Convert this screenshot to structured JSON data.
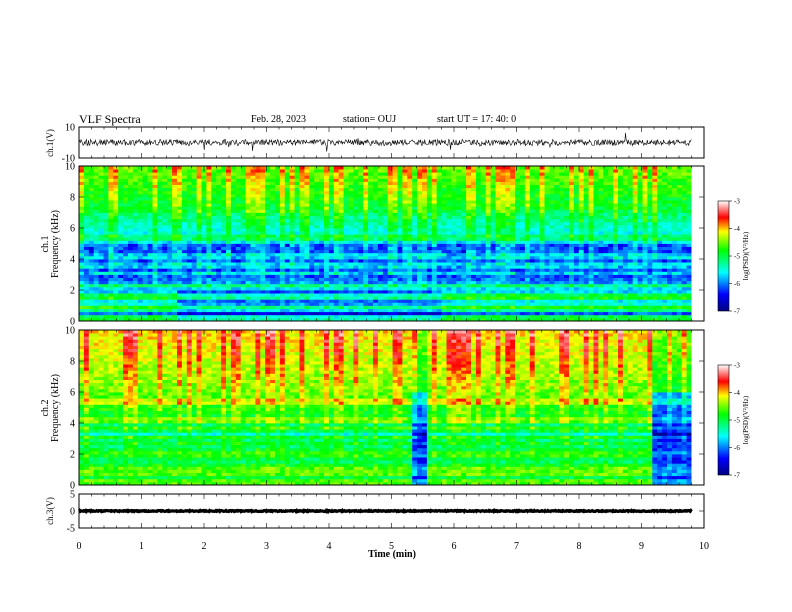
{
  "header": {
    "title": "VLF Spectra",
    "date": "Feb. 28, 2023",
    "station": "station= OUJ",
    "start": "start  UT =   17: 40: 0"
  },
  "colors": {
    "spectrogram_low": "#00007f",
    "spectrogram_mid": "#00ff00",
    "spectrogram_high": "#ff0000",
    "trace": "#000000",
    "background": "#ffffff"
  },
  "chart_data": [
    {
      "type": "line",
      "panel": "ch1-waveform",
      "ylabel": "ch.1(V)",
      "ylim": [
        -10,
        10
      ],
      "ytick_labels": [
        "10",
        "-10"
      ],
      "xlim": [
        0,
        10
      ],
      "series": [
        {
          "description_free": true,
          "baseline": 0,
          "noise_amplitude": 2
        }
      ]
    },
    {
      "type": "heatmap",
      "panel": "ch1-spectrogram",
      "ylabel": "ch.1 Frequency (kHz)",
      "ylim": [
        0,
        10
      ],
      "ytick_labels": [
        "0",
        "2",
        "4",
        "6",
        "8",
        "10"
      ],
      "xlim": [
        0,
        10
      ],
      "colorbar": {
        "label": "log(PSD)(V²/Hz)",
        "range": [
          -7,
          -3
        ],
        "tick_labels": [
          "-3",
          "-4",
          "-5",
          "-6",
          "-7"
        ]
      }
    },
    {
      "type": "heatmap",
      "panel": "ch2-spectrogram",
      "ylabel": "ch.2 Frequency (kHz)",
      "ylim": [
        0,
        10
      ],
      "ytick_labels": [
        "0",
        "2",
        "4",
        "6",
        "8",
        "10"
      ],
      "xlim": [
        0,
        10
      ],
      "colorbar": {
        "label": "log(PSD)(V²/Hz)",
        "range": [
          -7,
          -3
        ],
        "tick_labels": [
          "-3",
          "-4",
          "-5",
          "-6",
          "-7"
        ]
      }
    },
    {
      "type": "line",
      "panel": "ch3-waveform",
      "ylabel": "ch.3(V)",
      "ylim": [
        -5,
        5
      ],
      "ytick_labels": [
        "5",
        "0",
        "-5"
      ],
      "xlim": [
        0,
        10
      ],
      "series": [
        {
          "baseline": 0,
          "noise_amplitude": 0.15
        }
      ]
    }
  ],
  "time_axis": {
    "xlabel": "Time  (min)",
    "tick_labels": [
      "0",
      "1",
      "2",
      "3",
      "4",
      "5",
      "6",
      "7",
      "8",
      "9",
      "10"
    ],
    "xlim": [
      0,
      10
    ],
    "data_end": 9.8
  }
}
